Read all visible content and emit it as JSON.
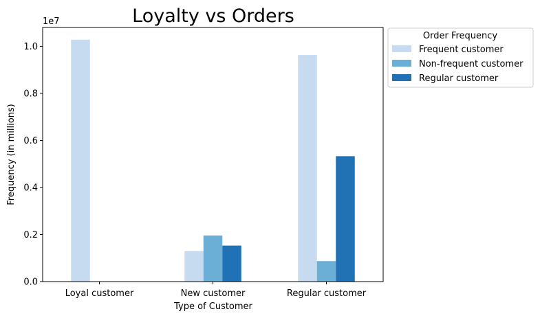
{
  "chart_data": {
    "type": "bar",
    "title": "Loyalty vs Orders",
    "xlabel": "Type of Customer",
    "ylabel": "Frequency (in millions)",
    "y_offset_text": "1e7",
    "categories": [
      "Loyal customer",
      "New customer",
      "Regular customer"
    ],
    "series": [
      {
        "name": "Frequent customer",
        "color": "#c6dbef",
        "values": [
          10280000,
          1300000,
          9630000
        ]
      },
      {
        "name": "Non-frequent customer",
        "color": "#6baed6",
        "values": [
          0,
          1960000,
          870000
        ]
      },
      {
        "name": "Regular customer",
        "color": "#2171b5",
        "values": [
          0,
          1530000,
          5330000
        ]
      }
    ],
    "ylim": [
      0,
      10800000
    ],
    "yticks": [
      {
        "value": 0,
        "label": "0.0"
      },
      {
        "value": 2000000,
        "label": "0.2"
      },
      {
        "value": 4000000,
        "label": "0.4"
      },
      {
        "value": 6000000,
        "label": "0.6"
      },
      {
        "value": 8000000,
        "label": "0.8"
      },
      {
        "value": 10000000,
        "label": "1.0"
      }
    ],
    "legend": {
      "title": "Order Frequency",
      "placement": "outside-top-right"
    },
    "grid": false
  }
}
